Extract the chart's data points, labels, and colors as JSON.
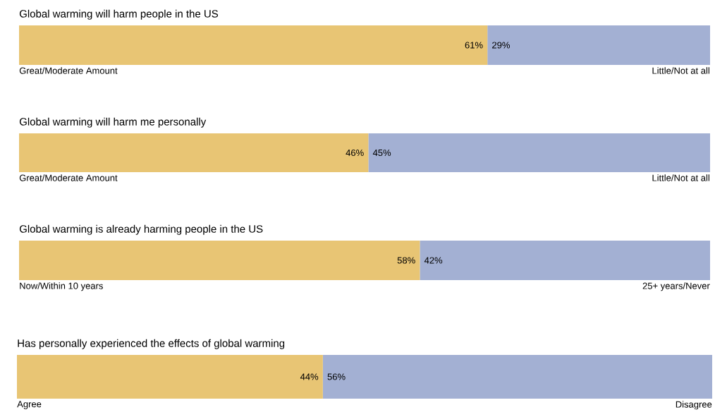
{
  "chart_data": [
    {
      "type": "bar",
      "orientation": "horizontal",
      "stacked": true,
      "title": "Global warming will harm people in the US",
      "categories": [
        null
      ],
      "series": [
        {
          "name": "Great/Moderate Amount",
          "color": "#e8c574",
          "values": [
            61
          ],
          "value_labels": [
            "61%"
          ]
        },
        {
          "name": "Little/Not at all",
          "color": "#a3b0d3",
          "values": [
            29
          ],
          "value_labels": [
            "29%"
          ]
        }
      ]
    },
    {
      "type": "bar",
      "orientation": "horizontal",
      "stacked": true,
      "title": "Global warming will harm me personally",
      "categories": [
        null
      ],
      "series": [
        {
          "name": "Great/Moderate Amount",
          "color": "#e8c574",
          "values": [
            46
          ],
          "value_labels": [
            "46%"
          ]
        },
        {
          "name": "Little/Not at all",
          "color": "#a3b0d3",
          "values": [
            45
          ],
          "value_labels": [
            "45%"
          ]
        }
      ]
    },
    {
      "type": "bar",
      "orientation": "horizontal",
      "stacked": true,
      "title": "Global warming is already harming people in the US",
      "categories": [
        null
      ],
      "series": [
        {
          "name": "Now/Within 10 years",
          "color": "#e8c574",
          "values": [
            58
          ],
          "value_labels": [
            "58%"
          ]
        },
        {
          "name": "25+ years/Never",
          "color": "#a3b0d3",
          "values": [
            42
          ],
          "value_labels": [
            "42%"
          ]
        }
      ]
    },
    {
      "type": "bar",
      "orientation": "horizontal",
      "stacked": true,
      "title": "Has personally experienced the effects of global warming",
      "categories": [
        null
      ],
      "series": [
        {
          "name": "Agree",
          "color": "#e8c574",
          "values": [
            44
          ],
          "value_labels": [
            "44%"
          ]
        },
        {
          "name": "Disagree",
          "color": "#a3b0d3",
          "values": [
            56
          ],
          "value_labels": [
            "56%"
          ]
        }
      ]
    }
  ]
}
